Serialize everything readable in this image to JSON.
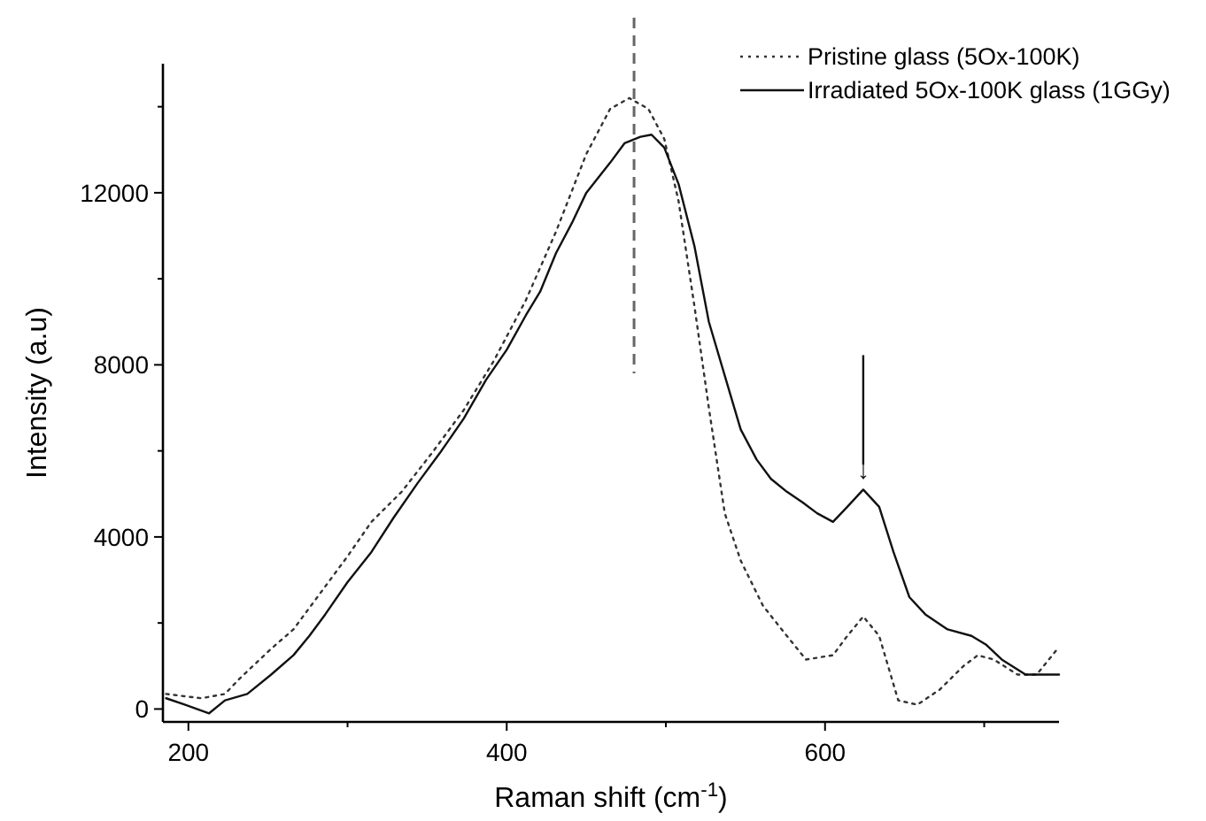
{
  "chart_data": {
    "type": "line",
    "xlabel": "Raman shift (cm$^{-1}$)",
    "ylabel": "Intensity (a.u)",
    "xlim": [
      184,
      747
    ],
    "ylim": [
      -300,
      15000
    ],
    "xticks": [
      200,
      {
        "value": 300,
        "label": null
      },
      400,
      {
        "value": 500,
        "label": null
      },
      600,
      {
        "value": 700,
        "label": null
      }
    ],
    "yticks": [
      0,
      {
        "value": 2000,
        "label": null
      },
      4000,
      {
        "value": 6000,
        "label": null
      },
      8000,
      {
        "value": 10000,
        "label": null
      },
      12000,
      {
        "value": 14000,
        "label": null
      }
    ],
    "grid": false,
    "legend": "top right",
    "marker": "none",
    "series": [
      {
        "name": "Pristine glass (5Ox-100K)",
        "color": "#333333",
        "line_style": "dotted",
        "x": [
          186,
          208,
          223,
          232,
          252,
          266,
          281,
          300,
          315,
          334,
          353,
          373,
          392,
          412,
          431,
          450,
          465,
          477,
          489,
          499,
          508,
          518,
          527,
          537,
          547,
          561,
          576,
          588,
          605,
          614,
          624,
          634,
          646,
          658,
          672,
          687,
          696,
          706,
          721,
          733,
          745
        ],
        "values": [
          350,
          250,
          350,
          700,
          1400,
          1850,
          2600,
          3550,
          4350,
          5050,
          5950,
          6950,
          8100,
          9500,
          11100,
          12900,
          13950,
          14200,
          13950,
          13250,
          11800,
          9350,
          7000,
          4550,
          3450,
          2400,
          1700,
          1150,
          1250,
          1700,
          2150,
          1700,
          200,
          100,
          450,
          1000,
          1250,
          1150,
          800,
          800,
          1350
        ]
      },
      {
        "name": "Irradiated 5Ox-100K glass (1GGy)",
        "color": "#111111",
        "line_style": "solid",
        "x": [
          186,
          198,
          213,
          223,
          237,
          252,
          266,
          276,
          286,
          300,
          315,
          329,
          344,
          358,
          373,
          387,
          400,
          412,
          421,
          431,
          441,
          450,
          465,
          474,
          484,
          491,
          499,
          508,
          518,
          527,
          537,
          547,
          557,
          566,
          576,
          586,
          595,
          605,
          614,
          624,
          634,
          643,
          653,
          663,
          677,
          692,
          701,
          711,
          726,
          747
        ],
        "values": [
          250,
          100,
          -100,
          200,
          350,
          800,
          1250,
          1700,
          2200,
          2950,
          3650,
          4450,
          5250,
          5950,
          6750,
          7650,
          8350,
          9150,
          9700,
          10600,
          11300,
          12000,
          12700,
          13150,
          13300,
          13350,
          13050,
          12200,
          10750,
          9000,
          7750,
          6500,
          5800,
          5350,
          5050,
          4800,
          4550,
          4350,
          4700,
          5100,
          4700,
          3650,
          2600,
          2200,
          1850,
          1700,
          1500,
          1150,
          800,
          800
        ]
      }
    ],
    "ref_lines": [
      {
        "axis": "x",
        "value": 480,
        "label": null,
        "color": "#666666",
        "line_style": "dashed"
      }
    ],
    "annotations": [
      {
        "text": "↓",
        "x": 624,
        "y": 5100
      }
    ]
  }
}
